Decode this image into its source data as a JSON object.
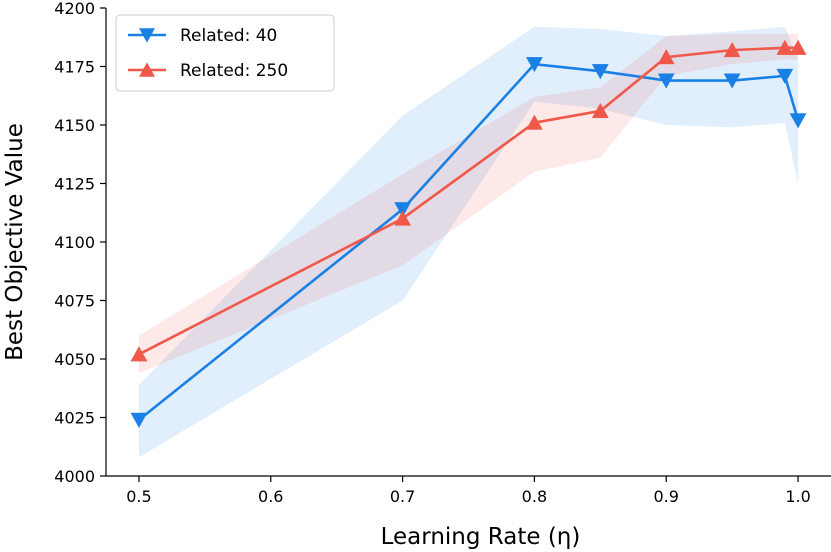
{
  "chart_data": {
    "type": "line",
    "title": "",
    "xlabel": "Learning Rate (η)",
    "ylabel": "Best Objective Value",
    "xlim": [
      0.475,
      1.025
    ],
    "ylim": [
      4000,
      4200
    ],
    "xticks": [
      0.5,
      0.6,
      0.7,
      0.8,
      0.9,
      1.0
    ],
    "xtick_labels": [
      "0.5",
      "0.6",
      "0.7",
      "0.8",
      "0.9",
      "1.0"
    ],
    "yticks": [
      4000,
      4025,
      4050,
      4075,
      4100,
      4125,
      4150,
      4175,
      4200
    ],
    "ytick_labels": [
      "4000",
      "4025",
      "4050",
      "4075",
      "4100",
      "4125",
      "4150",
      "4175",
      "4200"
    ],
    "grid": false,
    "legend_position": "top-left",
    "series": [
      {
        "name": "Related: 40",
        "color": "#1a80e6",
        "marker": "triangle-down",
        "x": [
          0.5,
          0.7,
          0.8,
          0.85,
          0.9,
          0.95,
          0.99,
          1.0
        ],
        "values": [
          4024,
          4114,
          4176,
          4173,
          4169,
          4169,
          4171,
          4152
        ],
        "lower": [
          4008,
          4075,
          4160,
          4157,
          4150,
          4149,
          4151,
          4125
        ],
        "upper": [
          4039,
          4154,
          4192,
          4191,
          4188,
          4190,
          4192,
          4178
        ]
      },
      {
        "name": "Related: 250",
        "color": "#f0584a",
        "marker": "triangle-up",
        "x": [
          0.5,
          0.7,
          0.8,
          0.85,
          0.9,
          0.95,
          0.99,
          1.0
        ],
        "values": [
          4052,
          4110,
          4151,
          4156,
          4179,
          4182,
          4183,
          4183
        ],
        "lower": [
          4044,
          4090,
          4130,
          4136,
          4171,
          4176,
          4178,
          4178
        ],
        "upper": [
          4060,
          4129,
          4162,
          4166,
          4188,
          4189,
          4189,
          4189
        ]
      }
    ]
  }
}
